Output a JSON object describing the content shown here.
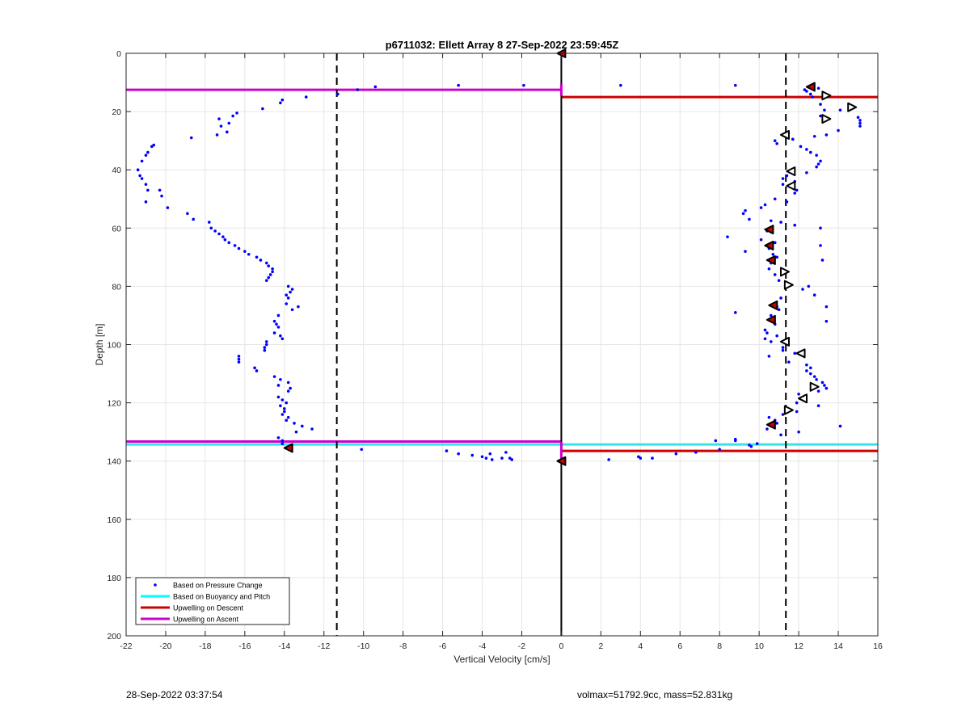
{
  "chart_data": {
    "type": "scatter",
    "title": "p6711032: Ellett Array 8 27-Sep-2022 23:59:45Z",
    "xlabel": "Vertical Velocity [cm/s]",
    "ylabel": "Depth [m]",
    "xlim": [
      -22,
      16
    ],
    "ylim": [
      0,
      200
    ],
    "y_reversed": true,
    "xticks": [
      -22,
      -20,
      -18,
      -16,
      -14,
      -12,
      -10,
      -8,
      -6,
      -4,
      -2,
      0,
      2,
      4,
      6,
      8,
      10,
      12,
      14,
      16
    ],
    "yticks": [
      0,
      20,
      40,
      60,
      80,
      100,
      120,
      140,
      160,
      180,
      200
    ],
    "grid": true,
    "legend_position": "bottom-left",
    "legend": [
      {
        "label": "Based on Pressure Change",
        "kind": "dot",
        "color": "#0000ff"
      },
      {
        "label": "Based on Buoyancy and Pitch",
        "kind": "line",
        "color": "#00ffff"
      },
      {
        "label": "Upwelling on Descent",
        "kind": "line",
        "color": "#cc0000"
      },
      {
        "label": "Upwelling on Ascent",
        "kind": "line",
        "color": "#cc00cc"
      }
    ],
    "colors": {
      "pressure": "#0000ff",
      "buoyancy": "#33e6e6",
      "descent": "#cc0000",
      "ascent": "#cc00cc",
      "zero_line": "#000000",
      "threshold": "#000000"
    },
    "threshold_lines_x": [
      -11.35,
      11.35
    ],
    "zero_line_x": 0,
    "horizontal_lines": [
      {
        "series": "ascent",
        "y": 12.5,
        "x_from": -22,
        "x_to": 0
      },
      {
        "series": "descent",
        "y": 15,
        "x_from": 0,
        "x_to": 16
      },
      {
        "series": "buoyancy",
        "y": 134.3,
        "x_from": -22,
        "x_to": 16
      },
      {
        "series": "ascent",
        "y": 133.3,
        "x_from": -22,
        "x_to": 0
      },
      {
        "series": "descent",
        "y": 136.5,
        "x_from": 0,
        "x_to": 16
      }
    ],
    "ascent_vertical_segments": [
      {
        "x": 0,
        "y_from": 10.5,
        "y_to": 14.5
      },
      {
        "x": 0,
        "y_from": 133.3,
        "y_to": 139.5
      }
    ],
    "pressure_points": [
      [
        -21.4,
        40
      ],
      [
        -21.2,
        37
      ],
      [
        -21,
        35
      ],
      [
        -20.9,
        34
      ],
      [
        -20.7,
        32
      ],
      [
        -20.6,
        31.5
      ],
      [
        -21.3,
        42
      ],
      [
        -21.2,
        43
      ],
      [
        -21,
        45
      ],
      [
        -20.9,
        47
      ],
      [
        -20.3,
        47
      ],
      [
        -20.2,
        49
      ],
      [
        -21,
        51
      ],
      [
        -19.9,
        53
      ],
      [
        -18.9,
        55
      ],
      [
        -18.6,
        57
      ],
      [
        -17.8,
        58
      ],
      [
        -17.7,
        60
      ],
      [
        -17.5,
        61
      ],
      [
        -17.3,
        62
      ],
      [
        -17.1,
        63
      ],
      [
        -17,
        64
      ],
      [
        -16.8,
        65
      ],
      [
        -16.5,
        66
      ],
      [
        -16.3,
        67
      ],
      [
        -16,
        68
      ],
      [
        -15.8,
        69
      ],
      [
        -15.4,
        70
      ],
      [
        -15.2,
        71
      ],
      [
        -14.9,
        72
      ],
      [
        -14.8,
        73
      ],
      [
        -14.6,
        74
      ],
      [
        -14.6,
        75
      ],
      [
        -14.7,
        76
      ],
      [
        -14.8,
        77
      ],
      [
        -14.9,
        78
      ],
      [
        -13.8,
        80
      ],
      [
        -13.6,
        81
      ],
      [
        -13.7,
        82
      ],
      [
        -13.9,
        83
      ],
      [
        -13.8,
        84
      ],
      [
        -13.9,
        86
      ],
      [
        -13.3,
        87
      ],
      [
        -13.6,
        88
      ],
      [
        -14.3,
        90
      ],
      [
        -14.5,
        92
      ],
      [
        -14.4,
        93
      ],
      [
        -14.3,
        94
      ],
      [
        -14.5,
        96
      ],
      [
        -14.2,
        97
      ],
      [
        -14.1,
        98
      ],
      [
        -14.9,
        99
      ],
      [
        -14.9,
        100
      ],
      [
        -15,
        101
      ],
      [
        -15,
        102
      ],
      [
        -16.3,
        104
      ],
      [
        -16.3,
        105
      ],
      [
        -16.3,
        106
      ],
      [
        -15.5,
        108
      ],
      [
        -15.4,
        109
      ],
      [
        -14.5,
        111
      ],
      [
        -14.2,
        112
      ],
      [
        -13.8,
        113
      ],
      [
        -14.3,
        114
      ],
      [
        -13.7,
        115
      ],
      [
        -13.8,
        116
      ],
      [
        -14.3,
        118
      ],
      [
        -14.1,
        119
      ],
      [
        -13.9,
        120
      ],
      [
        -14.2,
        121
      ],
      [
        -14,
        122
      ],
      [
        -14,
        123
      ],
      [
        -14.1,
        124
      ],
      [
        -13.8,
        125
      ],
      [
        -13.9,
        126
      ],
      [
        -13.5,
        127
      ],
      [
        -13.1,
        128
      ],
      [
        -12.6,
        129
      ],
      [
        -13.4,
        130
      ],
      [
        -14.3,
        132
      ],
      [
        -14.1,
        133
      ],
      [
        -14.1,
        134
      ],
      [
        -10.1,
        136
      ],
      [
        -5.8,
        136.5
      ],
      [
        -5.2,
        137.5
      ],
      [
        -4.5,
        138
      ],
      [
        -4,
        138.5
      ],
      [
        -3.8,
        139
      ],
      [
        -3.5,
        139.5
      ],
      [
        -3,
        139
      ],
      [
        -3.6,
        137.5
      ],
      [
        -2.8,
        137
      ],
      [
        -2.6,
        139
      ],
      [
        -2.5,
        139.5
      ],
      [
        -18.7,
        29
      ],
      [
        -17.4,
        28
      ],
      [
        -16.9,
        27
      ],
      [
        -17.2,
        25
      ],
      [
        -16.8,
        24
      ],
      [
        -17.3,
        22.5
      ],
      [
        -16.6,
        21.5
      ],
      [
        -16.4,
        20.5
      ],
      [
        -15.1,
        19
      ],
      [
        -14.2,
        17
      ],
      [
        -14.1,
        16
      ],
      [
        -12.9,
        15
      ],
      [
        -11.3,
        14
      ],
      [
        -10.3,
        12.5
      ],
      [
        -9.4,
        11.5
      ],
      [
        -5.2,
        11
      ],
      [
        -1.9,
        11
      ],
      [
        3,
        11
      ],
      [
        8.8,
        11
      ],
      [
        12.3,
        12.5
      ],
      [
        12.4,
        13
      ],
      [
        12.6,
        14
      ],
      [
        12.7,
        15
      ],
      [
        13,
        12
      ],
      [
        13.1,
        17.5
      ],
      [
        13.3,
        19.5
      ],
      [
        14.1,
        19.5
      ],
      [
        13.1,
        21.5
      ],
      [
        15,
        22
      ],
      [
        15.1,
        23
      ],
      [
        15.1,
        24
      ],
      [
        15.1,
        25
      ],
      [
        14,
        26.5
      ],
      [
        13.4,
        28
      ],
      [
        12.8,
        28.5
      ],
      [
        11.7,
        29.5
      ],
      [
        10.8,
        30
      ],
      [
        10.9,
        31
      ],
      [
        12.1,
        32
      ],
      [
        12.4,
        33
      ],
      [
        12.6,
        34
      ],
      [
        12.9,
        35
      ],
      [
        13.1,
        37
      ],
      [
        13,
        38
      ],
      [
        12.9,
        39
      ],
      [
        12.4,
        41
      ],
      [
        11.4,
        42
      ],
      [
        11.2,
        43
      ],
      [
        11.8,
        44
      ],
      [
        11.2,
        45
      ],
      [
        11.9,
        47
      ],
      [
        11.8,
        48
      ],
      [
        10.8,
        50
      ],
      [
        11.4,
        51
      ],
      [
        10.3,
        52
      ],
      [
        10.1,
        53
      ],
      [
        9.3,
        54
      ],
      [
        9.2,
        55
      ],
      [
        9.5,
        57
      ],
      [
        10.6,
        57.5
      ],
      [
        11.1,
        58
      ],
      [
        11.8,
        59
      ],
      [
        13.1,
        60
      ],
      [
        10.4,
        61
      ],
      [
        8.4,
        63
      ],
      [
        10.1,
        64
      ],
      [
        10.8,
        65
      ],
      [
        13.1,
        66
      ],
      [
        10.5,
        67
      ],
      [
        9.3,
        68
      ],
      [
        10.7,
        69
      ],
      [
        10.9,
        70
      ],
      [
        13.2,
        71
      ],
      [
        10.6,
        72
      ],
      [
        10.5,
        74
      ],
      [
        10.8,
        76
      ],
      [
        11,
        78
      ],
      [
        12.5,
        80
      ],
      [
        12.2,
        81
      ],
      [
        12.8,
        83
      ],
      [
        11.1,
        84
      ],
      [
        10.8,
        86
      ],
      [
        10.9,
        87
      ],
      [
        13.4,
        87
      ],
      [
        11,
        88
      ],
      [
        8.8,
        89
      ],
      [
        10.6,
        90
      ],
      [
        13.4,
        92
      ],
      [
        10.8,
        93
      ],
      [
        10.3,
        95
      ],
      [
        10.4,
        96
      ],
      [
        10.9,
        97
      ],
      [
        10.3,
        98
      ],
      [
        10.6,
        99
      ],
      [
        11.2,
        101
      ],
      [
        11.2,
        102
      ],
      [
        11.8,
        103
      ],
      [
        10.5,
        104
      ],
      [
        11.5,
        106
      ],
      [
        12.4,
        107
      ],
      [
        12.6,
        108
      ],
      [
        12.4,
        109
      ],
      [
        12.6,
        110
      ],
      [
        12.8,
        111
      ],
      [
        12.9,
        112
      ],
      [
        13.2,
        113
      ],
      [
        13.3,
        114
      ],
      [
        13.4,
        115
      ],
      [
        13,
        116
      ],
      [
        12,
        117
      ],
      [
        12.3,
        118
      ],
      [
        11.9,
        120
      ],
      [
        13,
        121
      ],
      [
        11.9,
        123
      ],
      [
        11.2,
        124
      ],
      [
        10.5,
        125
      ],
      [
        10.8,
        126
      ],
      [
        10.9,
        127
      ],
      [
        14.1,
        128
      ],
      [
        10.4,
        129
      ],
      [
        12,
        130
      ],
      [
        11.1,
        131
      ],
      [
        7.8,
        133
      ],
      [
        8.8,
        132.5
      ],
      [
        9.6,
        135
      ],
      [
        9.9,
        134
      ],
      [
        8,
        136
      ],
      [
        6.8,
        137
      ],
      [
        5.8,
        137.5
      ],
      [
        4.6,
        139
      ],
      [
        3.9,
        138.5
      ],
      [
        4,
        139
      ],
      [
        2.4,
        139.5
      ],
      [
        8.8,
        133
      ],
      [
        9.5,
        134.5
      ]
    ],
    "black_triangles": [
      {
        "x": 12.6,
        "y": 11.5,
        "filled": true,
        "dir": "left"
      },
      {
        "x": 13.4,
        "y": 14.5,
        "filled": false,
        "dir": "right"
      },
      {
        "x": 14.7,
        "y": 18.5,
        "filled": false,
        "dir": "right"
      },
      {
        "x": 13.4,
        "y": 22.5,
        "filled": false,
        "dir": "right"
      },
      {
        "x": 11.3,
        "y": 28,
        "filled": false,
        "dir": "left"
      },
      {
        "x": 11.6,
        "y": 40.5,
        "filled": false,
        "dir": "left"
      },
      {
        "x": 11.6,
        "y": 45.5,
        "filled": false,
        "dir": "left"
      },
      {
        "x": 10.5,
        "y": 60.5,
        "filled": true,
        "dir": "left"
      },
      {
        "x": 10.5,
        "y": 66,
        "filled": true,
        "dir": "left"
      },
      {
        "x": 10.6,
        "y": 71,
        "filled": true,
        "dir": "left"
      },
      {
        "x": 11.3,
        "y": 75,
        "filled": false,
        "dir": "right"
      },
      {
        "x": 11.5,
        "y": 79.5,
        "filled": false,
        "dir": "right"
      },
      {
        "x": 10.7,
        "y": 86.5,
        "filled": true,
        "dir": "left"
      },
      {
        "x": 10.6,
        "y": 91.5,
        "filled": true,
        "dir": "left"
      },
      {
        "x": 11.3,
        "y": 99,
        "filled": false,
        "dir": "left"
      },
      {
        "x": 12.1,
        "y": 103,
        "filled": false,
        "dir": "left"
      },
      {
        "x": 12.8,
        "y": 114.5,
        "filled": false,
        "dir": "right"
      },
      {
        "x": 12.2,
        "y": 118.5,
        "filled": false,
        "dir": "left"
      },
      {
        "x": 11.5,
        "y": 122.5,
        "filled": false,
        "dir": "right"
      },
      {
        "x": 10.6,
        "y": 127.5,
        "filled": true,
        "dir": "left"
      },
      {
        "x": -13.8,
        "y": 135.5,
        "filled": true,
        "dir": "left"
      },
      {
        "x": 0,
        "y": 0,
        "filled": true,
        "dir": "left"
      },
      {
        "x": 0,
        "y": 140,
        "filled": true,
        "dir": "left"
      }
    ]
  },
  "footer": {
    "timestamp": "28-Sep-2022 03:37:54",
    "info": "volmax=51792.9cc, mass=52.831kg"
  }
}
